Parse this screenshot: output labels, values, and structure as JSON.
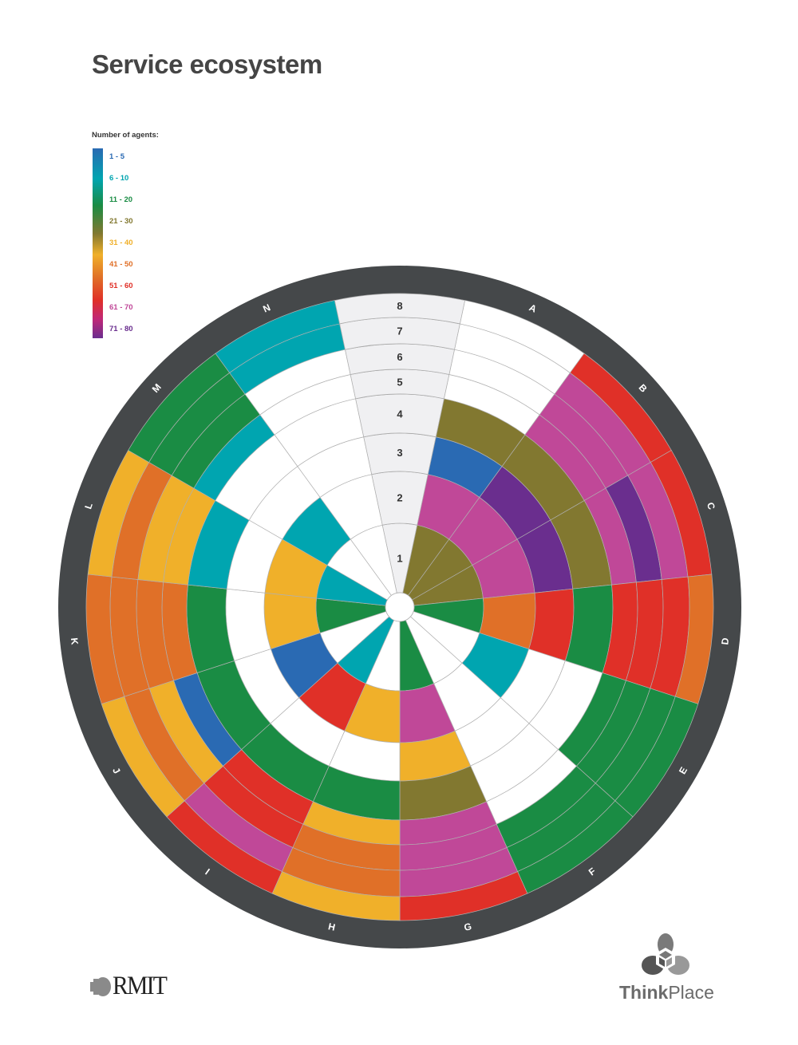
{
  "title": "Service ecosystem",
  "legend": {
    "title": "Number of agents:",
    "items": [
      {
        "label": "1 - 5",
        "color": "#2a6ab3"
      },
      {
        "label": "6 - 10",
        "color": "#00a5b0"
      },
      {
        "label": "11 - 20",
        "color": "#1a8c44"
      },
      {
        "label": "21 - 30",
        "color": "#827830"
      },
      {
        "label": "31 - 40",
        "color": "#f0b02a"
      },
      {
        "label": "41 - 50",
        "color": "#e07028"
      },
      {
        "label": "51 - 60",
        "color": "#e03028"
      },
      {
        "label": "61 - 70",
        "color": "#c04898"
      },
      {
        "label": "71 - 80",
        "color": "#6a2e8e"
      }
    ]
  },
  "chart_data": {
    "type": "heatmap",
    "layout": "polar",
    "title": "Service ecosystem",
    "ring_labels": [
      "1",
      "2",
      "3",
      "4",
      "5",
      "6",
      "7",
      "8"
    ],
    "sector_labels": [
      "A",
      "B",
      "C",
      "D",
      "E",
      "F",
      "G",
      "H",
      "I",
      "J",
      "K",
      "L",
      "M",
      "N"
    ],
    "values_note": "legend category index per ring (0 = 1-5 ... 8 = 71-80), null = none",
    "sectors": [
      {
        "name": "A",
        "rings": [
          3,
          7,
          0,
          3,
          null,
          null,
          null,
          null
        ]
      },
      {
        "name": "B",
        "rings": [
          3,
          7,
          8,
          3,
          7,
          7,
          7,
          6
        ]
      },
      {
        "name": "C",
        "rings": [
          3,
          7,
          8,
          3,
          7,
          8,
          7,
          6
        ]
      },
      {
        "name": "D",
        "rings": [
          2,
          5,
          6,
          2,
          6,
          6,
          6,
          5
        ]
      },
      {
        "name": "E",
        "rings": [
          null,
          1,
          null,
          null,
          2,
          2,
          2,
          2
        ]
      },
      {
        "name": "F",
        "rings": [
          null,
          null,
          null,
          null,
          null,
          2,
          2,
          2
        ]
      },
      {
        "name": "G",
        "rings": [
          2,
          7,
          4,
          3,
          7,
          7,
          7,
          6
        ]
      },
      {
        "name": "H",
        "rings": [
          null,
          4,
          null,
          2,
          4,
          5,
          5,
          4
        ]
      },
      {
        "name": "I",
        "rings": [
          1,
          6,
          null,
          2,
          6,
          6,
          7,
          6
        ]
      },
      {
        "name": "J",
        "rings": [
          null,
          0,
          null,
          2,
          0,
          4,
          5,
          4
        ]
      },
      {
        "name": "K",
        "rings": [
          2,
          4,
          null,
          2,
          5,
          5,
          5,
          5
        ]
      },
      {
        "name": "L",
        "rings": [
          1,
          4,
          null,
          1,
          4,
          4,
          5,
          4
        ]
      },
      {
        "name": "M",
        "rings": [
          null,
          1,
          null,
          null,
          1,
          2,
          2,
          2
        ]
      },
      {
        "name": "N",
        "rings": [
          null,
          null,
          null,
          null,
          null,
          null,
          1,
          1
        ]
      }
    ]
  },
  "logos": {
    "left": "RMIT",
    "right_bold": "Think",
    "right_regular": "Place"
  }
}
